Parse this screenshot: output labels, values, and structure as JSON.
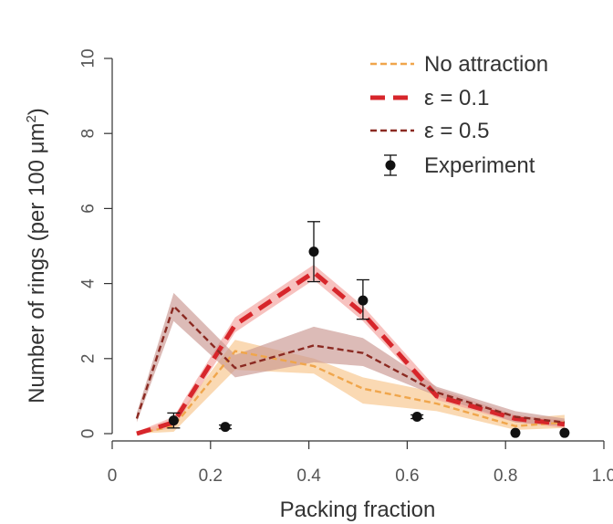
{
  "chart_data": {
    "type": "line",
    "xlabel": "Packing fraction",
    "ylabel": "Number of rings (per 100 μm",
    "ylabel_sup": "2",
    "ylabel_close": ")",
    "xlim": [
      0,
      1.0
    ],
    "ylim": [
      0,
      10
    ],
    "x_ticks": [
      0,
      0.2,
      0.4,
      0.6,
      0.8,
      1.0
    ],
    "x_tick_labels": [
      "0",
      "0.2",
      "0.4",
      "0.6",
      "0.8",
      "1.0"
    ],
    "y_ticks": [
      0,
      2,
      4,
      6,
      8,
      10
    ],
    "y_tick_labels": [
      "0",
      "2",
      "4",
      "6",
      "8",
      "10"
    ],
    "grid": false,
    "legend_position": "top-right",
    "series": [
      {
        "name": "No attraction",
        "style": "dashed-thin",
        "color": "#f0a64c",
        "band_color": "#f7c48a",
        "x": [
          0.05,
          0.125,
          0.25,
          0.41,
          0.51,
          0.66,
          0.82,
          0.92
        ],
        "y": [
          0.0,
          0.2,
          2.2,
          1.8,
          1.2,
          0.8,
          0.2,
          0.3
        ],
        "band_low": [
          0.0,
          0.05,
          1.7,
          1.6,
          0.8,
          0.6,
          0.1,
          0.15
        ],
        "band_high": [
          0.05,
          0.35,
          2.5,
          2.0,
          1.5,
          1.1,
          0.4,
          0.5
        ]
      },
      {
        "name": "ε = 0.1",
        "style": "dashed-thick",
        "color": "#d7262b",
        "band_color": "#f3a29d",
        "x": [
          0.05,
          0.125,
          0.25,
          0.41,
          0.51,
          0.66,
          0.82,
          0.92
        ],
        "y": [
          0.0,
          0.3,
          2.9,
          4.3,
          3.2,
          1.0,
          0.4,
          0.25
        ],
        "band_low": [
          0.0,
          0.15,
          2.7,
          4.1,
          3.0,
          0.9,
          0.3,
          0.15
        ],
        "band_high": [
          0.05,
          0.45,
          3.1,
          4.5,
          3.4,
          1.2,
          0.5,
          0.35
        ]
      },
      {
        "name": "ε = 0.5",
        "style": "dashed-thin",
        "color": "#8b2a22",
        "band_color": "#c99691",
        "x": [
          0.05,
          0.125,
          0.25,
          0.41,
          0.51,
          0.66,
          0.82,
          0.92
        ],
        "y": [
          0.4,
          3.4,
          1.75,
          2.35,
          2.15,
          1.1,
          0.45,
          0.3
        ],
        "band_low": [
          0.3,
          3.0,
          1.5,
          1.9,
          1.8,
          1.0,
          0.3,
          0.2
        ],
        "band_high": [
          0.55,
          3.75,
          2.1,
          2.85,
          2.55,
          1.25,
          0.6,
          0.4
        ]
      }
    ],
    "experiment": {
      "name": "Experiment",
      "color": "#111111",
      "x": [
        0.125,
        0.23,
        0.41,
        0.51,
        0.62,
        0.82,
        0.92
      ],
      "y": [
        0.35,
        0.18,
        4.85,
        3.55,
        0.45,
        0.02,
        0.02
      ],
      "err_low": [
        0.2,
        0.05,
        0.8,
        0.5,
        0.05,
        0.0,
        0.0
      ],
      "err_high": [
        0.2,
        0.05,
        0.8,
        0.55,
        0.05,
        0.0,
        0.0
      ]
    }
  }
}
